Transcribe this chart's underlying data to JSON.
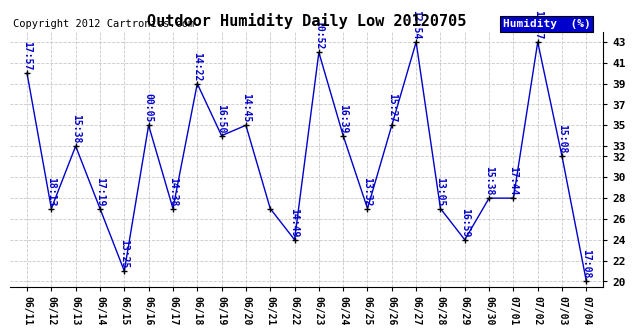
{
  "title": "Outdoor Humidity Daily Low 20120705",
  "copyright": "Copyright 2012 Cartronics.com",
  "legend_label": "Humidity  (%)",
  "dates": [
    "06/11",
    "06/12",
    "06/13",
    "06/14",
    "06/15",
    "06/16",
    "06/17",
    "06/18",
    "06/19",
    "06/20",
    "06/21",
    "06/22",
    "06/23",
    "06/24",
    "06/25",
    "06/26",
    "06/27",
    "06/28",
    "06/29",
    "06/30",
    "07/01",
    "07/02",
    "07/03",
    "07/04"
  ],
  "values": [
    40,
    27,
    33,
    27,
    21,
    35,
    27,
    39,
    34,
    35,
    27,
    24,
    42,
    34,
    27,
    35,
    43,
    27,
    24,
    28,
    28,
    43,
    32,
    20
  ],
  "labels": [
    "17:57",
    "18:13",
    "15:38",
    "17:19",
    "13:25",
    "00:05",
    "14:38",
    "14:22",
    "16:50",
    "14:45",
    "",
    "14:49",
    "10:52",
    "16:39",
    "13:32",
    "15:27",
    "12:54",
    "13:05",
    "16:59",
    "15:38",
    "17:44",
    "12:17",
    "15:08",
    "17:08"
  ],
  "line_color": "#0000cc",
  "marker_color": "#000000",
  "bg_color": "#ffffff",
  "grid_color": "#bbbbbb",
  "ylim": [
    19.5,
    44
  ],
  "yticks": [
    20,
    22,
    24,
    26,
    28,
    30,
    32,
    33,
    35,
    37,
    39,
    41,
    43
  ],
  "legend_bg": "#0000cc",
  "legend_text_color": "#ffffff",
  "title_color": "#000000",
  "label_color": "#0000cc",
  "label_fontsize": 7,
  "copyright_fontsize": 7.5
}
